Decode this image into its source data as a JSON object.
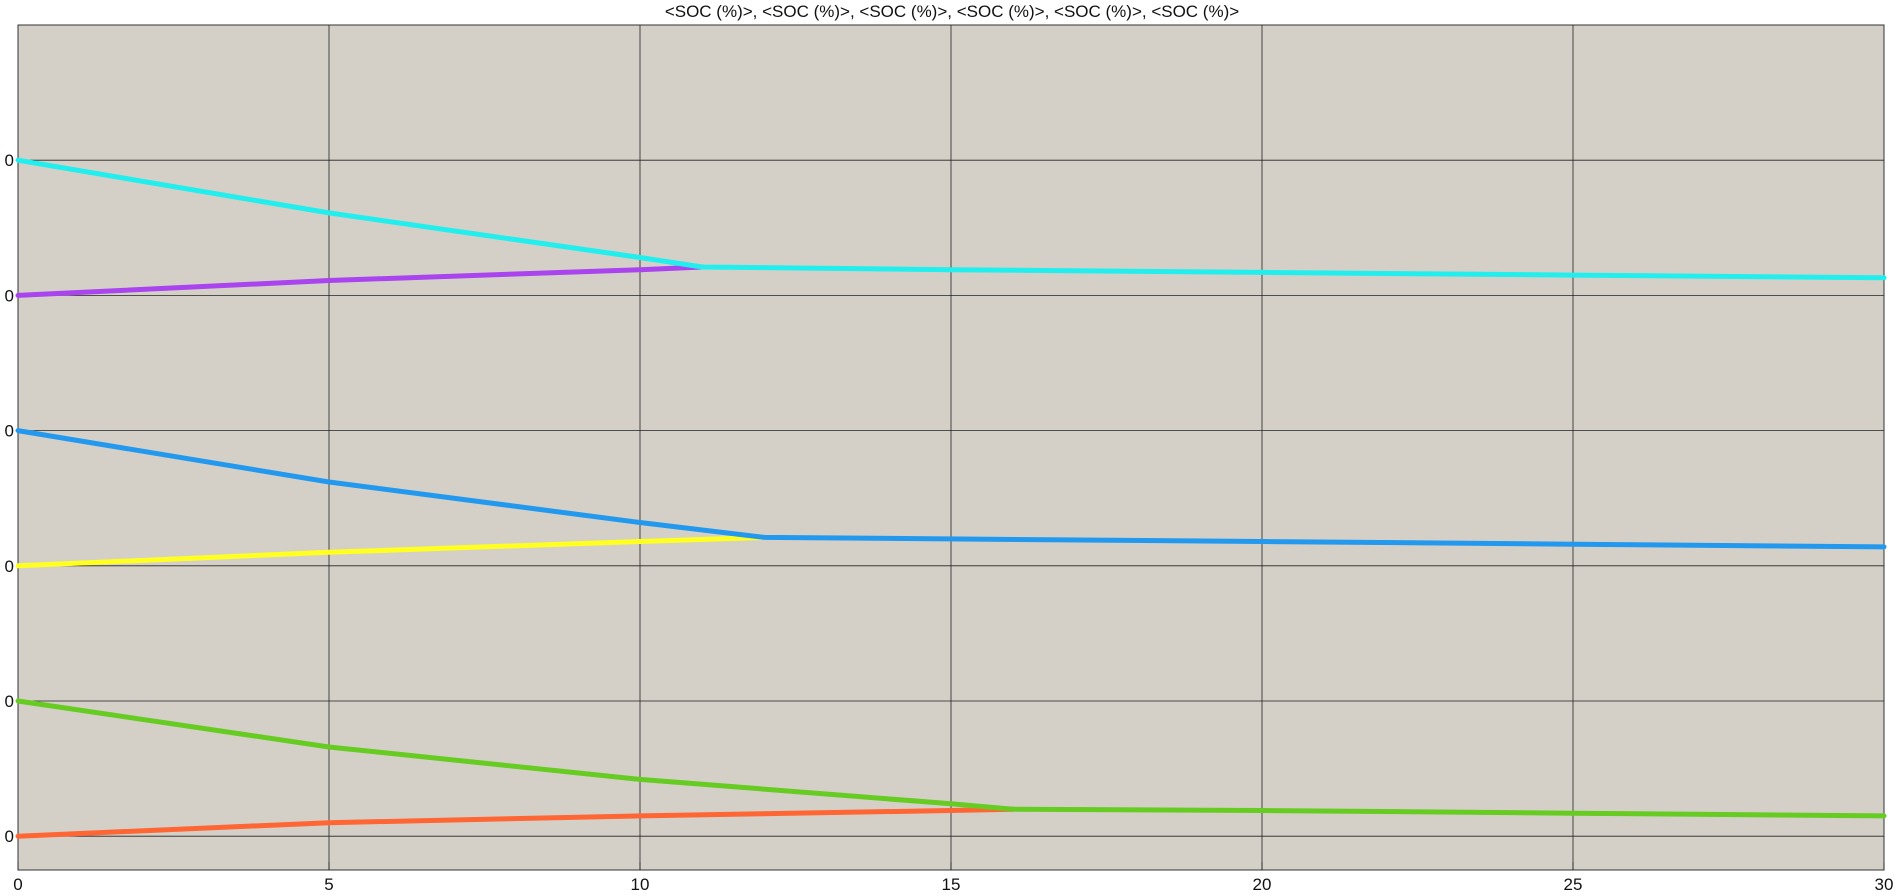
{
  "chart_data": {
    "type": "line",
    "title": "<SOC (%)>, <SOC (%)>, <SOC (%)>, <SOC (%)>, <SOC (%)>, <SOC (%)>",
    "xlabel": "",
    "ylabel": "",
    "xlim": [
      0,
      30
    ],
    "ylim": [
      3.75,
      10.0
    ],
    "x_ticks": [
      0,
      5,
      10,
      15,
      20,
      25,
      30
    ],
    "x_tick_labels": [
      "0",
      "5",
      "10",
      "15",
      "20",
      "25",
      "30"
    ],
    "y_ticks": [
      4,
      5,
      6,
      7,
      8,
      9
    ],
    "y_tick_labels": [
      "0",
      "0",
      "0",
      "0",
      "0",
      "0"
    ],
    "grid": true,
    "legend": "none",
    "background": "#d4d0c8",
    "series": [
      {
        "color": "#ff6633",
        "x": [
          0,
          5,
          10,
          15,
          16
        ],
        "y": [
          4.0,
          4.1,
          4.15,
          4.19,
          4.2
        ]
      },
      {
        "color": "#66cc22",
        "x": [
          0,
          5,
          10,
          15,
          16,
          20,
          25,
          30
        ],
        "y": [
          5.0,
          4.66,
          4.42,
          4.24,
          4.2,
          4.19,
          4.17,
          4.15
        ]
      },
      {
        "color": "#ffff22",
        "x": [
          0,
          5,
          10,
          12
        ],
        "y": [
          6.0,
          6.1,
          6.18,
          6.21
        ]
      },
      {
        "color": "#2299ee",
        "x": [
          0,
          5,
          10,
          12,
          20,
          25,
          30
        ],
        "y": [
          7.0,
          6.62,
          6.32,
          6.21,
          6.18,
          6.16,
          6.14
        ]
      },
      {
        "color": "#aa44ee",
        "x": [
          0,
          5,
          10,
          11
        ],
        "y": [
          8.0,
          8.11,
          8.19,
          8.21
        ]
      },
      {
        "color": "#22eeee",
        "x": [
          0,
          5,
          10,
          11,
          15,
          20,
          25,
          30
        ],
        "y": [
          9.0,
          8.61,
          8.28,
          8.21,
          8.19,
          8.17,
          8.15,
          8.13
        ]
      }
    ]
  }
}
